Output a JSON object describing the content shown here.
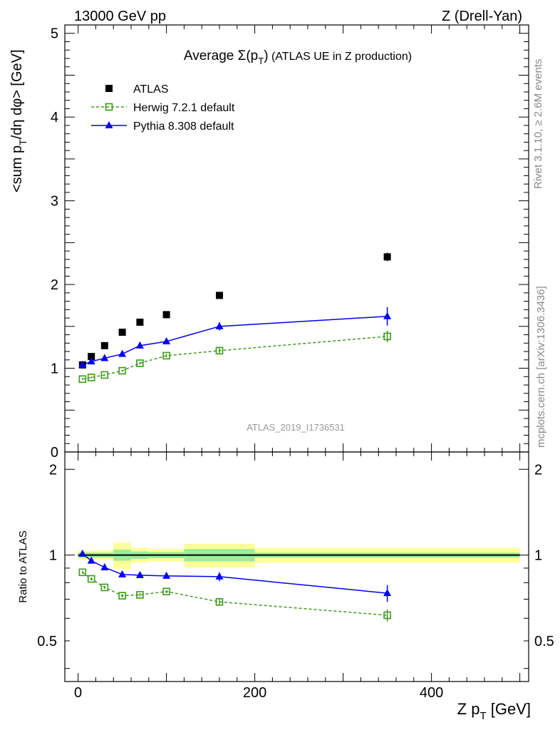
{
  "header": {
    "left": "13000 GeV pp",
    "right": "Z (Drell-Yan)"
  },
  "side_text": {
    "rivet": "Rivet 3.1.10, ≥ 2.6M events",
    "mcplots": "mcplots.cern.ch [arXiv:1306.3436]"
  },
  "chart_data": [
    {
      "type": "line",
      "panel": "main",
      "title_prefix": "Average ",
      "title_symbol": "Σ(p",
      "title_sub": "T",
      "title_close": ")",
      "title_suffix": " (ATLAS UE in Z production)",
      "ylabel_main": "<sum p",
      "ylabel_sub": "T",
      "ylabel_rest": "/dη dφ> [GeV]",
      "watermark": "ATLAS_2019_I1736531",
      "xlim": [
        -15,
        510
      ],
      "ylim": [
        0,
        5.1
      ],
      "yticks": [
        0,
        1,
        2,
        3,
        4,
        5
      ],
      "ytick_labels": [
        "0",
        "1",
        "2",
        "3",
        "4",
        "5"
      ],
      "legend_placement": "top-left",
      "x": [
        5,
        15,
        30,
        50,
        70,
        100,
        160,
        350
      ],
      "series": [
        {
          "name": "ATLAS",
          "marker": "square-filled",
          "color": "#000000",
          "values": [
            1.04,
            1.14,
            1.27,
            1.43,
            1.55,
            1.64,
            1.87,
            2.33
          ],
          "errors": [
            0.01,
            0.01,
            0.01,
            0.015,
            0.015,
            0.02,
            0.03,
            0.05
          ]
        },
        {
          "name": "Herwig 7.2.1 default",
          "marker": "square-open",
          "line": "dashed",
          "color": "#3f9a1a",
          "values": [
            0.87,
            0.89,
            0.92,
            0.97,
            1.06,
            1.15,
            1.21,
            1.38
          ],
          "errors": [
            0.01,
            0.01,
            0.01,
            0.01,
            0.015,
            0.02,
            0.03,
            0.07
          ]
        },
        {
          "name": "Pythia 8.308 default",
          "marker": "triangle-filled",
          "line": "solid",
          "color": "#0000ee",
          "values": [
            1.04,
            1.08,
            1.12,
            1.17,
            1.27,
            1.32,
            1.5,
            1.62
          ],
          "errors": [
            0.01,
            0.01,
            0.01,
            0.015,
            0.02,
            0.025,
            0.05,
            0.11
          ]
        }
      ]
    },
    {
      "type": "line",
      "panel": "ratio",
      "ylabel": "Ratio to ATLAS",
      "xlabel_main": "Z p",
      "xlabel_sub": "T",
      "xlabel_rest": " [GeV]",
      "xlim": [
        -15,
        510
      ],
      "ylim": [
        0.36,
        2.3
      ],
      "yticks": [
        0.5,
        1,
        2
      ],
      "ytick_labels": [
        "0.5",
        "1",
        "2"
      ],
      "xticks": [
        0,
        200,
        400
      ],
      "xtick_labels": [
        "0",
        "200",
        "400"
      ],
      "reference": 1.0,
      "bands": [
        {
          "x0": 0,
          "x1": 10,
          "stat": 0.02,
          "total": 0.035
        },
        {
          "x0": 10,
          "x1": 20,
          "stat": 0.02,
          "total": 0.035
        },
        {
          "x0": 20,
          "x1": 40,
          "stat": 0.02,
          "total": 0.04
        },
        {
          "x0": 40,
          "x1": 60,
          "stat": 0.045,
          "total": 0.105
        },
        {
          "x0": 60,
          "x1": 80,
          "stat": 0.03,
          "total": 0.06
        },
        {
          "x0": 80,
          "x1": 120,
          "stat": 0.025,
          "total": 0.05
        },
        {
          "x0": 120,
          "x1": 200,
          "stat": 0.05,
          "total": 0.095
        },
        {
          "x0": 200,
          "x1": 500,
          "stat": 0.02,
          "total": 0.06
        }
      ],
      "x": [
        5,
        15,
        30,
        50,
        70,
        100,
        160,
        350
      ],
      "series": [
        {
          "name": "Herwig 7.2.1 default",
          "marker": "square-open",
          "line": "dashed",
          "color": "#3f9a1a",
          "values": [
            0.87,
            0.825,
            0.77,
            0.72,
            0.725,
            0.745,
            0.685,
            0.615
          ],
          "errors": [
            0.01,
            0.01,
            0.01,
            0.01,
            0.01,
            0.01,
            0.015,
            0.03
          ]
        },
        {
          "name": "Pythia 8.308 default",
          "marker": "triangle-filled",
          "line": "solid",
          "color": "#0000ee",
          "values": [
            1.01,
            0.955,
            0.905,
            0.855,
            0.85,
            0.845,
            0.84,
            0.735
          ],
          "errors": [
            0.01,
            0.01,
            0.01,
            0.01,
            0.01,
            0.01,
            0.03,
            0.05
          ]
        }
      ]
    }
  ]
}
